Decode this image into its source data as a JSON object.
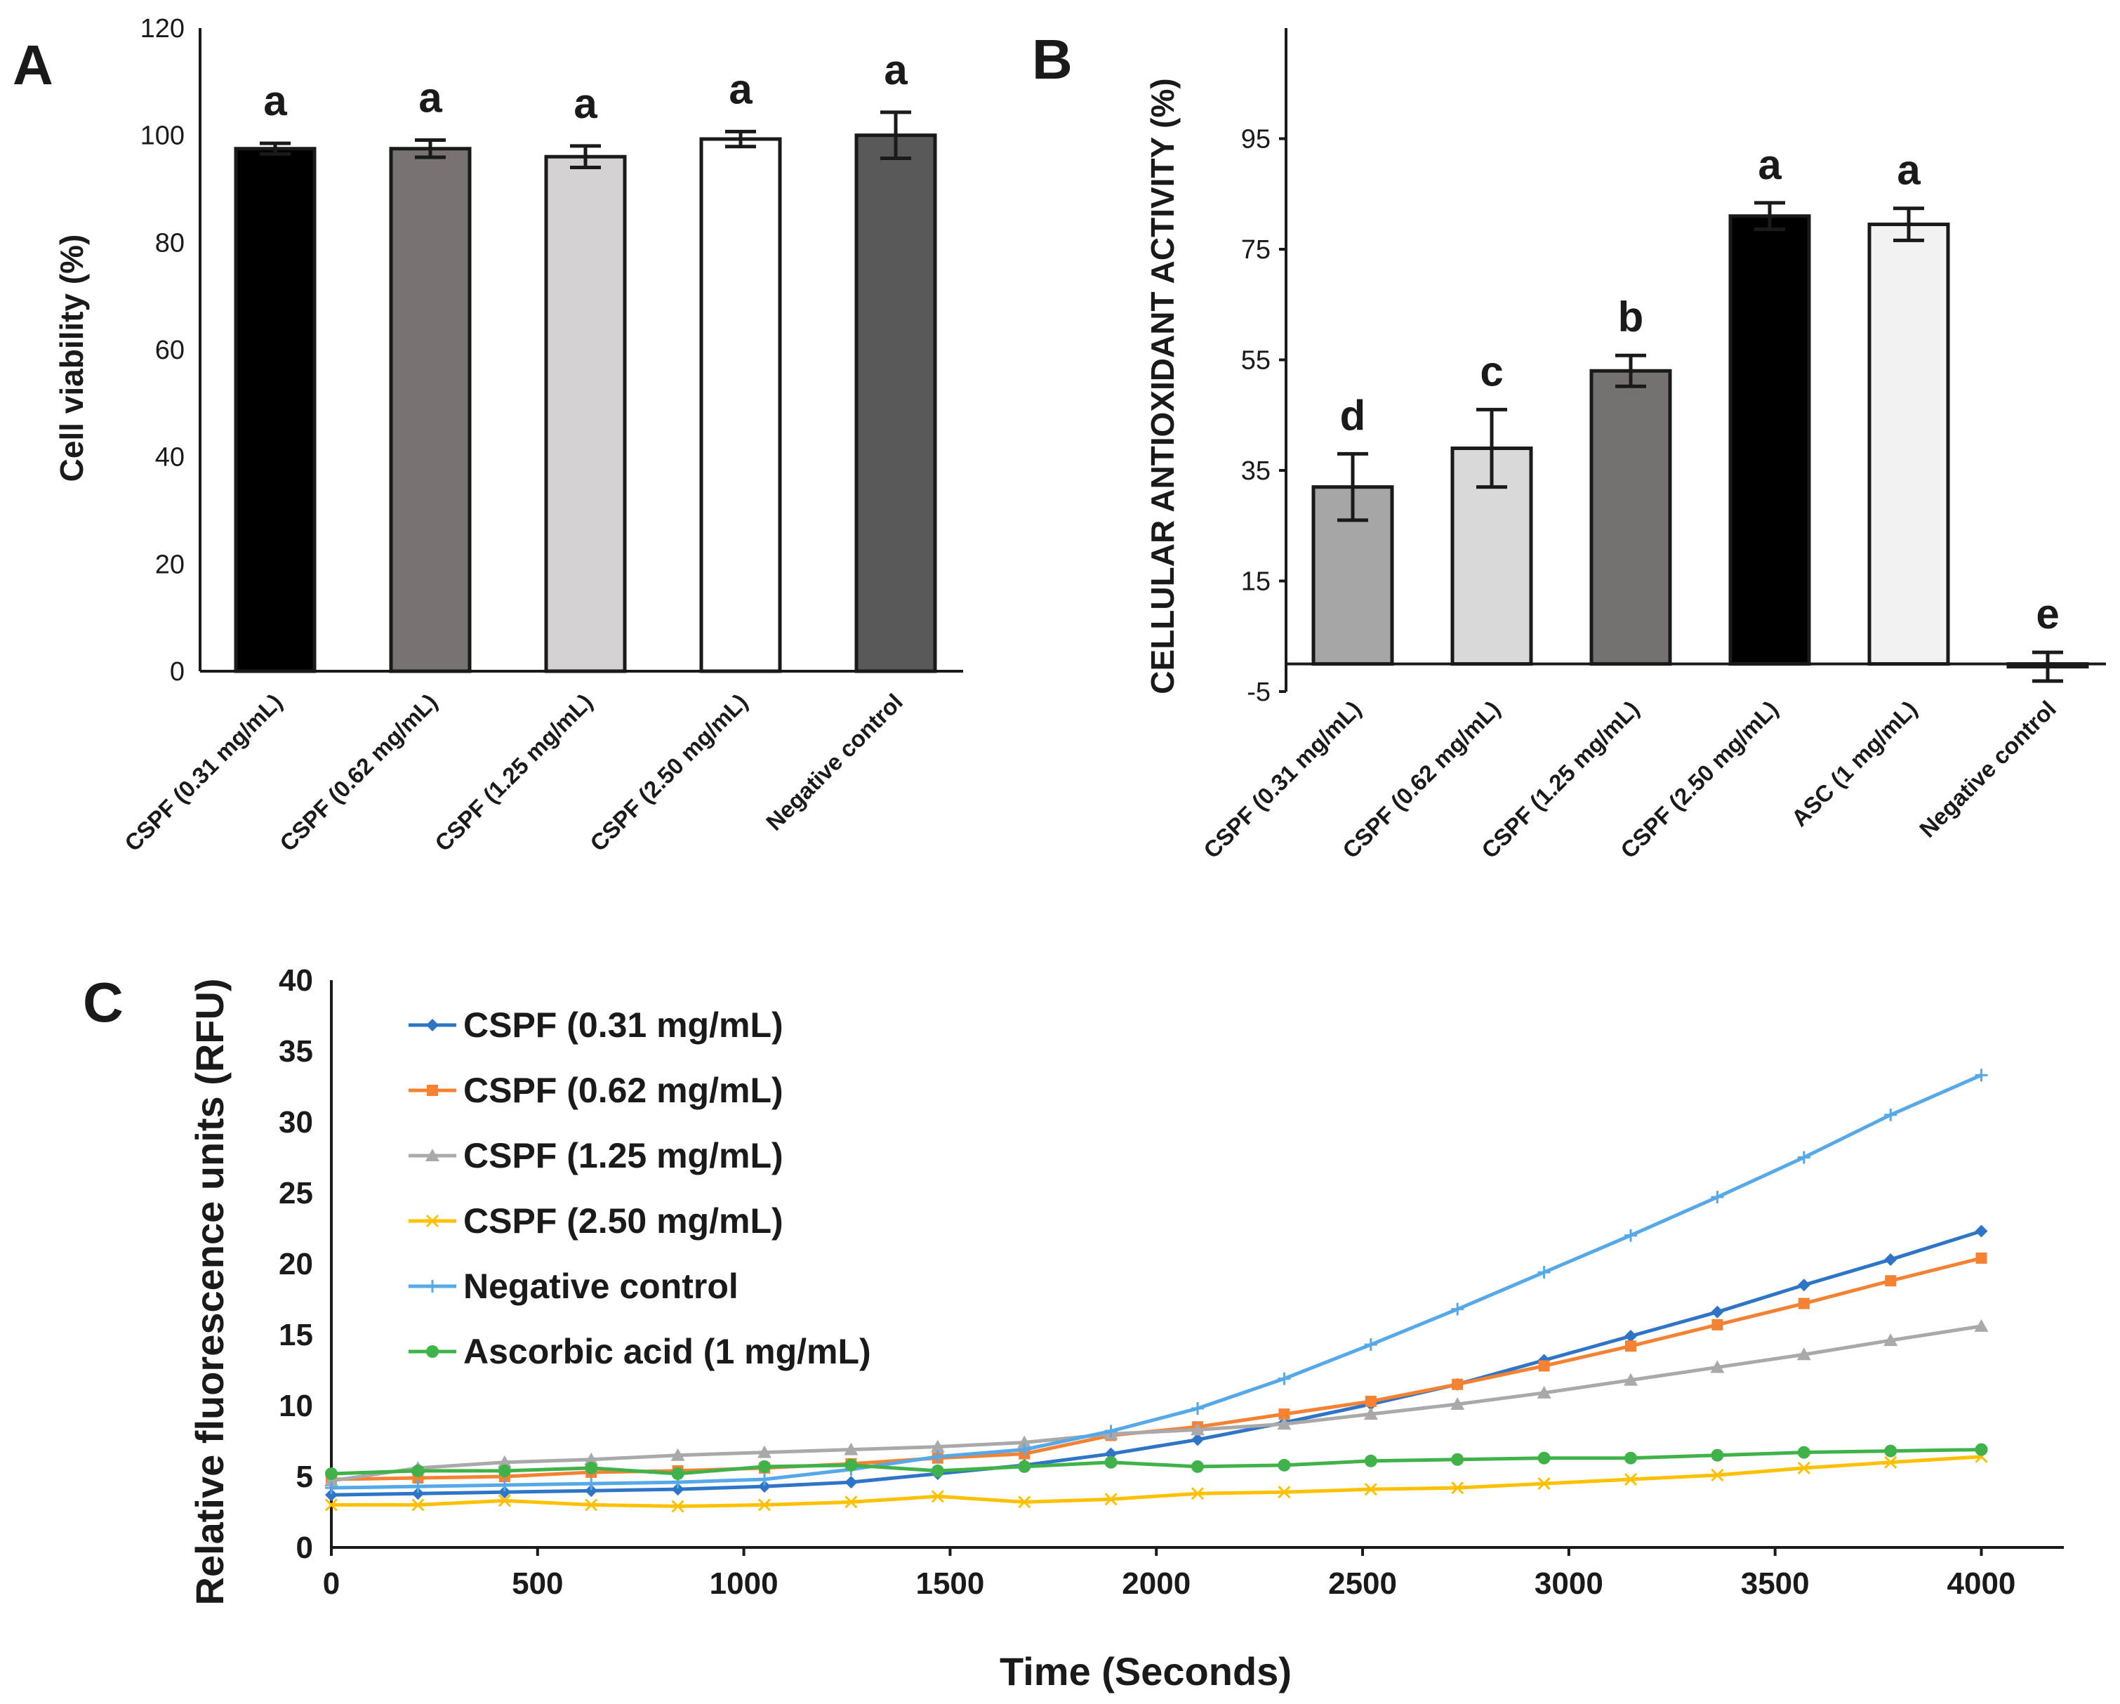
{
  "colors": {
    "black": "#000000",
    "dark_gray": "#787372",
    "light_gray": "#d4d2d3",
    "white": "#ffffff",
    "mid_dark": "#595959",
    "b_gray": "#a6a6a6",
    "b_light": "#d9d9d9",
    "b_dark": "#767171",
    "b_white": "#f2f2f2",
    "blue": "#2e75c8",
    "orange": "#f58233",
    "gray": "#a9a9a9",
    "yellow": "#ffc000",
    "light_blue": "#55a9e8",
    "green": "#3fb34a"
  },
  "chart_data": [
    {
      "panel": "A",
      "type": "bar",
      "title": "",
      "xlabel": "",
      "ylabel": "Cell viability (%)",
      "ylim": [
        0,
        120
      ],
      "yticks": [
        "0",
        "20",
        "40",
        "60",
        "80",
        "100",
        "120"
      ],
      "categories": [
        "CSPF (0.31 mg/mL)",
        "CSPF (0.62 mg/mL)",
        "CSPF (1.25 mg/mL)",
        "CSPF (2.50 mg/mL)",
        "Negative control"
      ],
      "values": [
        97.5,
        97.5,
        96,
        99.3,
        100
      ],
      "errors": [
        1,
        1.6,
        2,
        1.4,
        4.3
      ],
      "letters": [
        "a",
        "a",
        "a",
        "a",
        "a"
      ],
      "bar_colors": [
        "black",
        "dark_gray",
        "light_gray",
        "white",
        "mid_dark"
      ]
    },
    {
      "panel": "B",
      "type": "bar",
      "title": "",
      "xlabel": "",
      "ylabel": "CELLULAR ANTIOXIDANT  ACTIVITY (%)",
      "ylim": [
        -5,
        115
      ],
      "yticks": [
        "-5",
        "15",
        "35",
        "55",
        "75",
        "95"
      ],
      "categories": [
        "CSPF (0.31 mg/mL)",
        "CSPF (0.62 mg/mL)",
        "CSPF (1.25 mg/mL)",
        "CSPF (2.50 mg/mL)",
        "ASC (1 mg/mL)",
        "Negative control"
      ],
      "values": [
        32,
        39,
        53,
        81,
        79.5,
        -0.5
      ],
      "errors": [
        6,
        7,
        2.8,
        2.4,
        2.9,
        2.6
      ],
      "letters": [
        "d",
        "c",
        "b",
        "a",
        "a",
        "e"
      ],
      "bar_colors": [
        "b_gray",
        "b_light",
        "b_dark",
        "black",
        "b_white",
        "white"
      ]
    },
    {
      "panel": "C",
      "type": "line",
      "title": "",
      "xlabel": "Time (Seconds)",
      "ylabel": "Relative fluorescence units (RFU)",
      "xlim": [
        0,
        4200
      ],
      "ylim": [
        0,
        40
      ],
      "xticks": [
        "0",
        "500",
        "1000",
        "1500",
        "2000",
        "2500",
        "3000",
        "3500",
        "4000"
      ],
      "yticks": [
        "0",
        "5",
        "10",
        "15",
        "20",
        "25",
        "30",
        "35",
        "40"
      ],
      "x": [
        0,
        210,
        420,
        630,
        840,
        1050,
        1260,
        1470,
        1680,
        1890,
        2100,
        2310,
        2520,
        2730,
        2940,
        3150,
        3360,
        3570,
        3780,
        4000
      ],
      "series": [
        {
          "name": "CSPF (0.31 mg/mL)",
          "marker": "diamond",
          "color": "blue",
          "values": [
            3.7,
            3.8,
            3.9,
            4.0,
            4.1,
            4.3,
            4.6,
            5.2,
            5.8,
            6.6,
            7.6,
            8.8,
            10.1,
            11.5,
            13.2,
            14.9,
            16.6,
            18.5,
            20.3,
            22.3
          ]
        },
        {
          "name": "CSPF (0.62 mg/mL)",
          "marker": "square",
          "color": "orange",
          "values": [
            4.8,
            4.9,
            5.0,
            5.3,
            5.4,
            5.6,
            5.9,
            6.3,
            6.6,
            7.9,
            8.5,
            9.4,
            10.3,
            11.5,
            12.8,
            14.2,
            15.7,
            17.2,
            18.8,
            20.4
          ]
        },
        {
          "name": "CSPF (1.25 mg/mL)",
          "marker": "triangle",
          "color": "gray",
          "values": [
            4.7,
            5.6,
            6.0,
            6.2,
            6.5,
            6.7,
            6.9,
            7.1,
            7.4,
            8.0,
            8.3,
            8.7,
            9.4,
            10.1,
            10.9,
            11.8,
            12.7,
            13.6,
            14.6,
            15.6
          ]
        },
        {
          "name": "CSPF (2.50 mg/mL)",
          "marker": "x",
          "color": "yellow",
          "values": [
            3.0,
            3.0,
            3.3,
            3.0,
            2.9,
            3.0,
            3.2,
            3.6,
            3.2,
            3.4,
            3.8,
            3.9,
            4.1,
            4.2,
            4.5,
            4.8,
            5.1,
            5.6,
            6.0,
            6.4
          ]
        },
        {
          "name": "Negative control",
          "marker": "plus",
          "color": "light_blue",
          "values": [
            4.2,
            4.3,
            4.4,
            4.5,
            4.6,
            4.8,
            5.5,
            6.4,
            6.9,
            8.2,
            9.8,
            11.9,
            14.3,
            16.8,
            19.4,
            22.0,
            24.7,
            27.5,
            30.5,
            33.3
          ]
        },
        {
          "name": "Ascorbic acid (1 mg/mL)",
          "marker": "circle",
          "color": "green",
          "values": [
            5.2,
            5.4,
            5.4,
            5.6,
            5.2,
            5.7,
            5.8,
            5.4,
            5.7,
            6.0,
            5.7,
            5.8,
            6.1,
            6.2,
            6.3,
            6.3,
            6.5,
            6.7,
            6.8,
            6.9
          ]
        }
      ]
    }
  ]
}
